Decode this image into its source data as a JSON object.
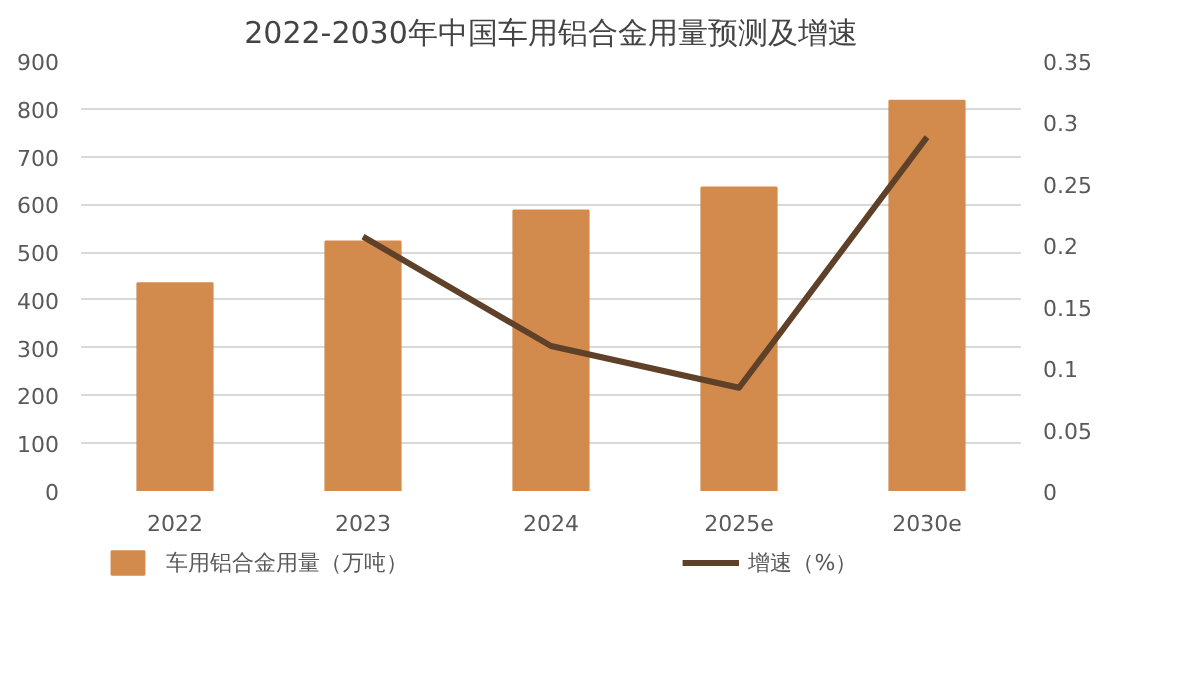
{
  "chart_data": {
    "type": "bar",
    "title": "2022-2030年中国车用铝合金用量预测及增速",
    "categories": [
      "2022",
      "2023",
      "2024",
      "2025e",
      "2030e"
    ],
    "series": [
      {
        "name": "车用铝合金用量（万吨）",
        "color": "#d38b4d",
        "values": [
          435,
          522,
          587,
          635,
          817
        ]
      },
      {
        "name": "增速（%）",
        "type": "line",
        "axis": "y2",
        "color": "#5e4128",
        "values": [
          null,
          0.207,
          0.118,
          0.084,
          0.288
        ]
      }
    ],
    "ylim": [
      0,
      900
    ],
    "yticks": [
      0,
      100,
      200,
      300,
      400,
      500,
      600,
      700,
      800,
      900
    ],
    "y2lim": [
      0,
      0.35
    ],
    "y2ticks": [
      0,
      0.05,
      0.1,
      0.15,
      0.2,
      0.25,
      0.3,
      0.35
    ],
    "grid": "y",
    "legend": "bottom"
  }
}
